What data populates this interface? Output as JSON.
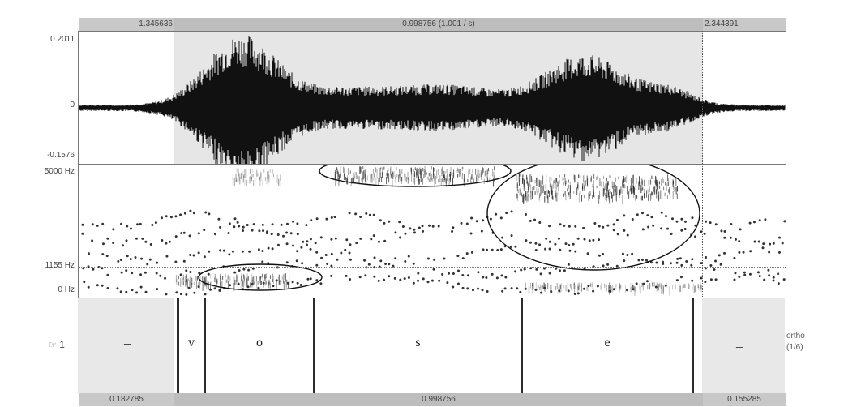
{
  "top_bar": {
    "left_time": "1.345636",
    "selection": "0.998756 (1.001 / s)",
    "right_time": "2.344391"
  },
  "waveform": {
    "max_label": "0.2011",
    "zero_label": "0",
    "min_label": "-0.1576"
  },
  "spectrogram": {
    "top_label": "5000 Hz",
    "mid_label": "1155 Hz",
    "bottom_label": "0 Hz"
  },
  "textgrid": {
    "tier_number": "1",
    "tier_name": "ortho",
    "tier_count": "(1/6)",
    "segments": [
      "_",
      "v",
      "o",
      "s",
      "e",
      "_"
    ]
  },
  "bottom_bar": {
    "left": "0.182785",
    "middle": "0.998756",
    "right": "0.155285"
  },
  "colors": {
    "selection_bg": "#e6e6e6",
    "bar_bg": "#c8c8c8",
    "waveform": "#111111",
    "formant_dot": "#333333",
    "boundary": "#2c2c2c"
  },
  "icons": {
    "tier_pointer": "hand-pointer-icon"
  }
}
